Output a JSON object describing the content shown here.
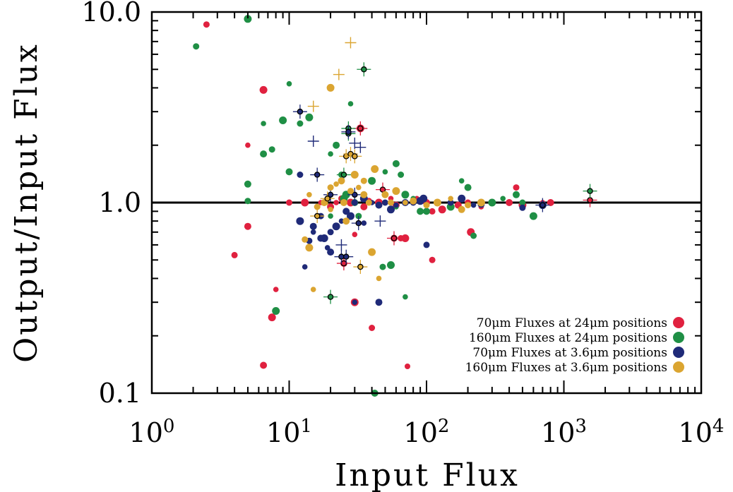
{
  "chart_data": {
    "type": "scatter",
    "title": "",
    "xlabel": "Input Flux",
    "ylabel": "Output/Input Flux",
    "xscale": "log",
    "yscale": "log",
    "xlim": [
      1,
      10000
    ],
    "ylim": [
      0.1,
      10
    ],
    "grid": false,
    "legend_position": "bottom-right",
    "reference_line_y": 1.0,
    "x_tick_labels": [
      {
        "value": 1,
        "base": "10",
        "exp": "0"
      },
      {
        "value": 10,
        "base": "10",
        "exp": "1"
      },
      {
        "value": 100,
        "base": "10",
        "exp": "2"
      },
      {
        "value": 1000,
        "base": "10",
        "exp": "3"
      },
      {
        "value": 10000,
        "base": "10",
        "exp": "4"
      }
    ],
    "y_tick_labels": [
      {
        "value": 0.1,
        "label": "0.1"
      },
      {
        "value": 1,
        "label": "1.0"
      },
      {
        "value": 10,
        "label": "10.0"
      }
    ],
    "legend": [
      {
        "label": "70μm Fluxes at 24μm positions",
        "color": "#e0213f"
      },
      {
        "label": "160μm Fluxes at 24μm positions",
        "color": "#1f8f45"
      },
      {
        "label": "70μm Fluxes at 3.6μm positions",
        "color": "#1f2a78"
      },
      {
        "label": "160μm Fluxes at 3.6μm positions",
        "color": "#dba531"
      }
    ],
    "series": [
      {
        "color": "#e0213f",
        "points": [
          [
            2.5,
            8.6
          ],
          [
            6.5,
            3.9
          ],
          [
            5.0,
            2.0
          ],
          [
            5.0,
            0.75
          ],
          [
            4.0,
            0.53
          ],
          [
            7.5,
            0.25
          ],
          [
            8.0,
            0.35
          ],
          [
            6.5,
            0.14
          ],
          [
            10,
            1.0
          ],
          [
            13,
            1.0
          ],
          [
            17,
            1.0
          ],
          [
            20,
            0.95
          ],
          [
            24,
            1.05
          ],
          [
            28,
            1.0
          ],
          [
            30,
            0.68
          ],
          [
            35,
            0.95
          ],
          [
            38,
            1.02
          ],
          [
            45,
            1.0
          ],
          [
            55,
            1.05
          ],
          [
            60,
            0.97
          ],
          [
            65,
            0.65
          ],
          [
            70,
            0.65
          ],
          [
            85,
            1.05
          ],
          [
            100,
            1.0
          ],
          [
            110,
            0.9
          ],
          [
            130,
            0.92
          ],
          [
            150,
            0.95
          ],
          [
            170,
            0.97
          ],
          [
            200,
            1.0
          ],
          [
            210,
            0.7
          ],
          [
            250,
            0.95
          ],
          [
            400,
            1.0
          ],
          [
            450,
            1.2
          ],
          [
            500,
            0.97
          ],
          [
            700,
            1.0
          ],
          [
            800,
            1.0
          ],
          [
            40,
            0.22
          ],
          [
            30,
            0.3
          ],
          [
            48,
            1.17
          ],
          [
            25,
            0.48
          ],
          [
            110,
            0.5
          ],
          [
            33,
            2.45
          ],
          [
            22,
            1.0
          ],
          [
            58,
            0.65
          ]
        ],
        "crossed": [
          [
            25,
            0.48
          ],
          [
            48,
            1.17
          ],
          [
            33,
            2.45
          ],
          [
            1550,
            1.03
          ],
          [
            58,
            0.65
          ]
        ]
      },
      {
        "color": "#1f8f45",
        "points": [
          [
            2.1,
            6.6
          ],
          [
            5.0,
            9.2
          ],
          [
            6.5,
            2.6
          ],
          [
            6.5,
            1.8
          ],
          [
            7.5,
            1.9
          ],
          [
            9,
            2.7
          ],
          [
            10,
            4.2
          ],
          [
            10,
            1.45
          ],
          [
            12,
            2.6
          ],
          [
            14,
            2.8
          ],
          [
            20,
            1.8
          ],
          [
            22,
            2.0
          ],
          [
            24,
            1.4
          ],
          [
            25,
            1.05
          ],
          [
            28,
            3.3
          ],
          [
            30,
            1.0
          ],
          [
            32,
            0.85
          ],
          [
            40,
            1.3
          ],
          [
            50,
            1.45
          ],
          [
            60,
            1.6
          ],
          [
            65,
            1.4
          ],
          [
            70,
            1.1
          ],
          [
            80,
            1.05
          ],
          [
            100,
            0.9
          ],
          [
            120,
            1.0
          ],
          [
            150,
            0.95
          ],
          [
            180,
            1.3
          ],
          [
            200,
            1.2
          ],
          [
            250,
            1.0
          ],
          [
            300,
            1.0
          ],
          [
            360,
            1.05
          ],
          [
            450,
            1.1
          ],
          [
            500,
            1.0
          ],
          [
            600,
            0.85
          ],
          [
            1550,
            1.15
          ],
          [
            5.0,
            1.25
          ],
          [
            5.0,
            1.02
          ],
          [
            8,
            0.27
          ],
          [
            20,
            0.85
          ],
          [
            30,
            1.4
          ],
          [
            48,
            0.46
          ],
          [
            55,
            0.47
          ],
          [
            70,
            0.32
          ],
          [
            42,
            0.1
          ],
          [
            220,
            0.67
          ],
          [
            26,
            1.1
          ],
          [
            60,
            0.95
          ],
          [
            90,
            0.9
          ]
        ],
        "crossed": [
          [
            20,
            0.32
          ],
          [
            35,
            5.0
          ],
          [
            27,
            2.3
          ],
          [
            27,
            2.45
          ],
          [
            25,
            1.4
          ],
          [
            1550,
            1.15
          ]
        ]
      },
      {
        "color": "#1f2a78",
        "points": [
          [
            12,
            1.4
          ],
          [
            12,
            0.8
          ],
          [
            13,
            0.46
          ],
          [
            15,
            0.75
          ],
          [
            17,
            0.85
          ],
          [
            18,
            0.65
          ],
          [
            19,
            0.58
          ],
          [
            20,
            0.55
          ],
          [
            20,
            0.7
          ],
          [
            22,
            0.75
          ],
          [
            24,
            0.8
          ],
          [
            26,
            0.9
          ],
          [
            30,
            1.0
          ],
          [
            35,
            1.05
          ],
          [
            40,
            1.0
          ],
          [
            45,
            0.97
          ],
          [
            50,
            1.0
          ],
          [
            55,
            0.92
          ],
          [
            60,
            0.97
          ],
          [
            70,
            1.0
          ],
          [
            80,
            1.0
          ],
          [
            90,
            1.02
          ],
          [
            100,
            0.97
          ],
          [
            120,
            1.0
          ],
          [
            150,
            1.0
          ],
          [
            180,
            1.05
          ],
          [
            220,
            0.97
          ],
          [
            250,
            0.98
          ],
          [
            500,
            0.94
          ],
          [
            700,
            0.97
          ],
          [
            15,
            0.7
          ],
          [
            17,
            0.65
          ],
          [
            14,
            0.63
          ],
          [
            28,
            0.85
          ],
          [
            30,
            0.3
          ],
          [
            45,
            0.3
          ],
          [
            100,
            0.6
          ],
          [
            95,
            1.05
          ],
          [
            35,
            0.78
          ]
        ],
        "crossed": [
          [
            12,
            3.0
          ],
          [
            16,
            1.4
          ],
          [
            20,
            1.1
          ],
          [
            24,
            0.52
          ],
          [
            26,
            0.52
          ],
          [
            27,
            2.35
          ],
          [
            32,
            0.78
          ],
          [
            700,
            0.97
          ],
          [
            30,
            1.1
          ]
        ],
        "plus_only": [
          [
            15,
            2.1
          ],
          [
            33,
            1.95
          ],
          [
            30,
            2.05
          ],
          [
            46,
            0.8
          ],
          [
            24,
            0.6
          ]
        ]
      },
      {
        "color": "#dba531",
        "points": [
          [
            13,
            0.64
          ],
          [
            14,
            0.58
          ],
          [
            15,
            0.35
          ],
          [
            18,
            1.0
          ],
          [
            20,
            1.2
          ],
          [
            20,
            4.0
          ],
          [
            22,
            1.25
          ],
          [
            25,
            1.0
          ],
          [
            28,
            1.15
          ],
          [
            30,
            1.4
          ],
          [
            32,
            1.2
          ],
          [
            35,
            1.1
          ],
          [
            38,
            1.0
          ],
          [
            40,
            0.55
          ],
          [
            45,
            0.4
          ],
          [
            50,
            1.1
          ],
          [
            55,
            1.0
          ],
          [
            60,
            1.15
          ],
          [
            70,
            1.0
          ],
          [
            80,
            1.02
          ],
          [
            100,
            0.97
          ],
          [
            120,
            1.0
          ],
          [
            150,
            1.05
          ],
          [
            180,
            0.92
          ],
          [
            200,
            0.97
          ],
          [
            250,
            1.0
          ],
          [
            14,
            1.1
          ],
          [
            24,
            1.3
          ],
          [
            35,
            1.3
          ],
          [
            42,
            1.5
          ],
          [
            20,
            0.92
          ],
          [
            26,
            0.8
          ],
          [
            16,
            0.95
          ]
        ],
        "crossed": [
          [
            26,
            1.75
          ],
          [
            28,
            1.8
          ],
          [
            30,
            1.75
          ],
          [
            33,
            0.46
          ],
          [
            16,
            0.85
          ],
          [
            19,
            1.05
          ]
        ],
        "plus_only": [
          [
            15,
            3.2
          ],
          [
            23,
            4.7
          ],
          [
            28,
            6.9
          ]
        ]
      }
    ]
  }
}
